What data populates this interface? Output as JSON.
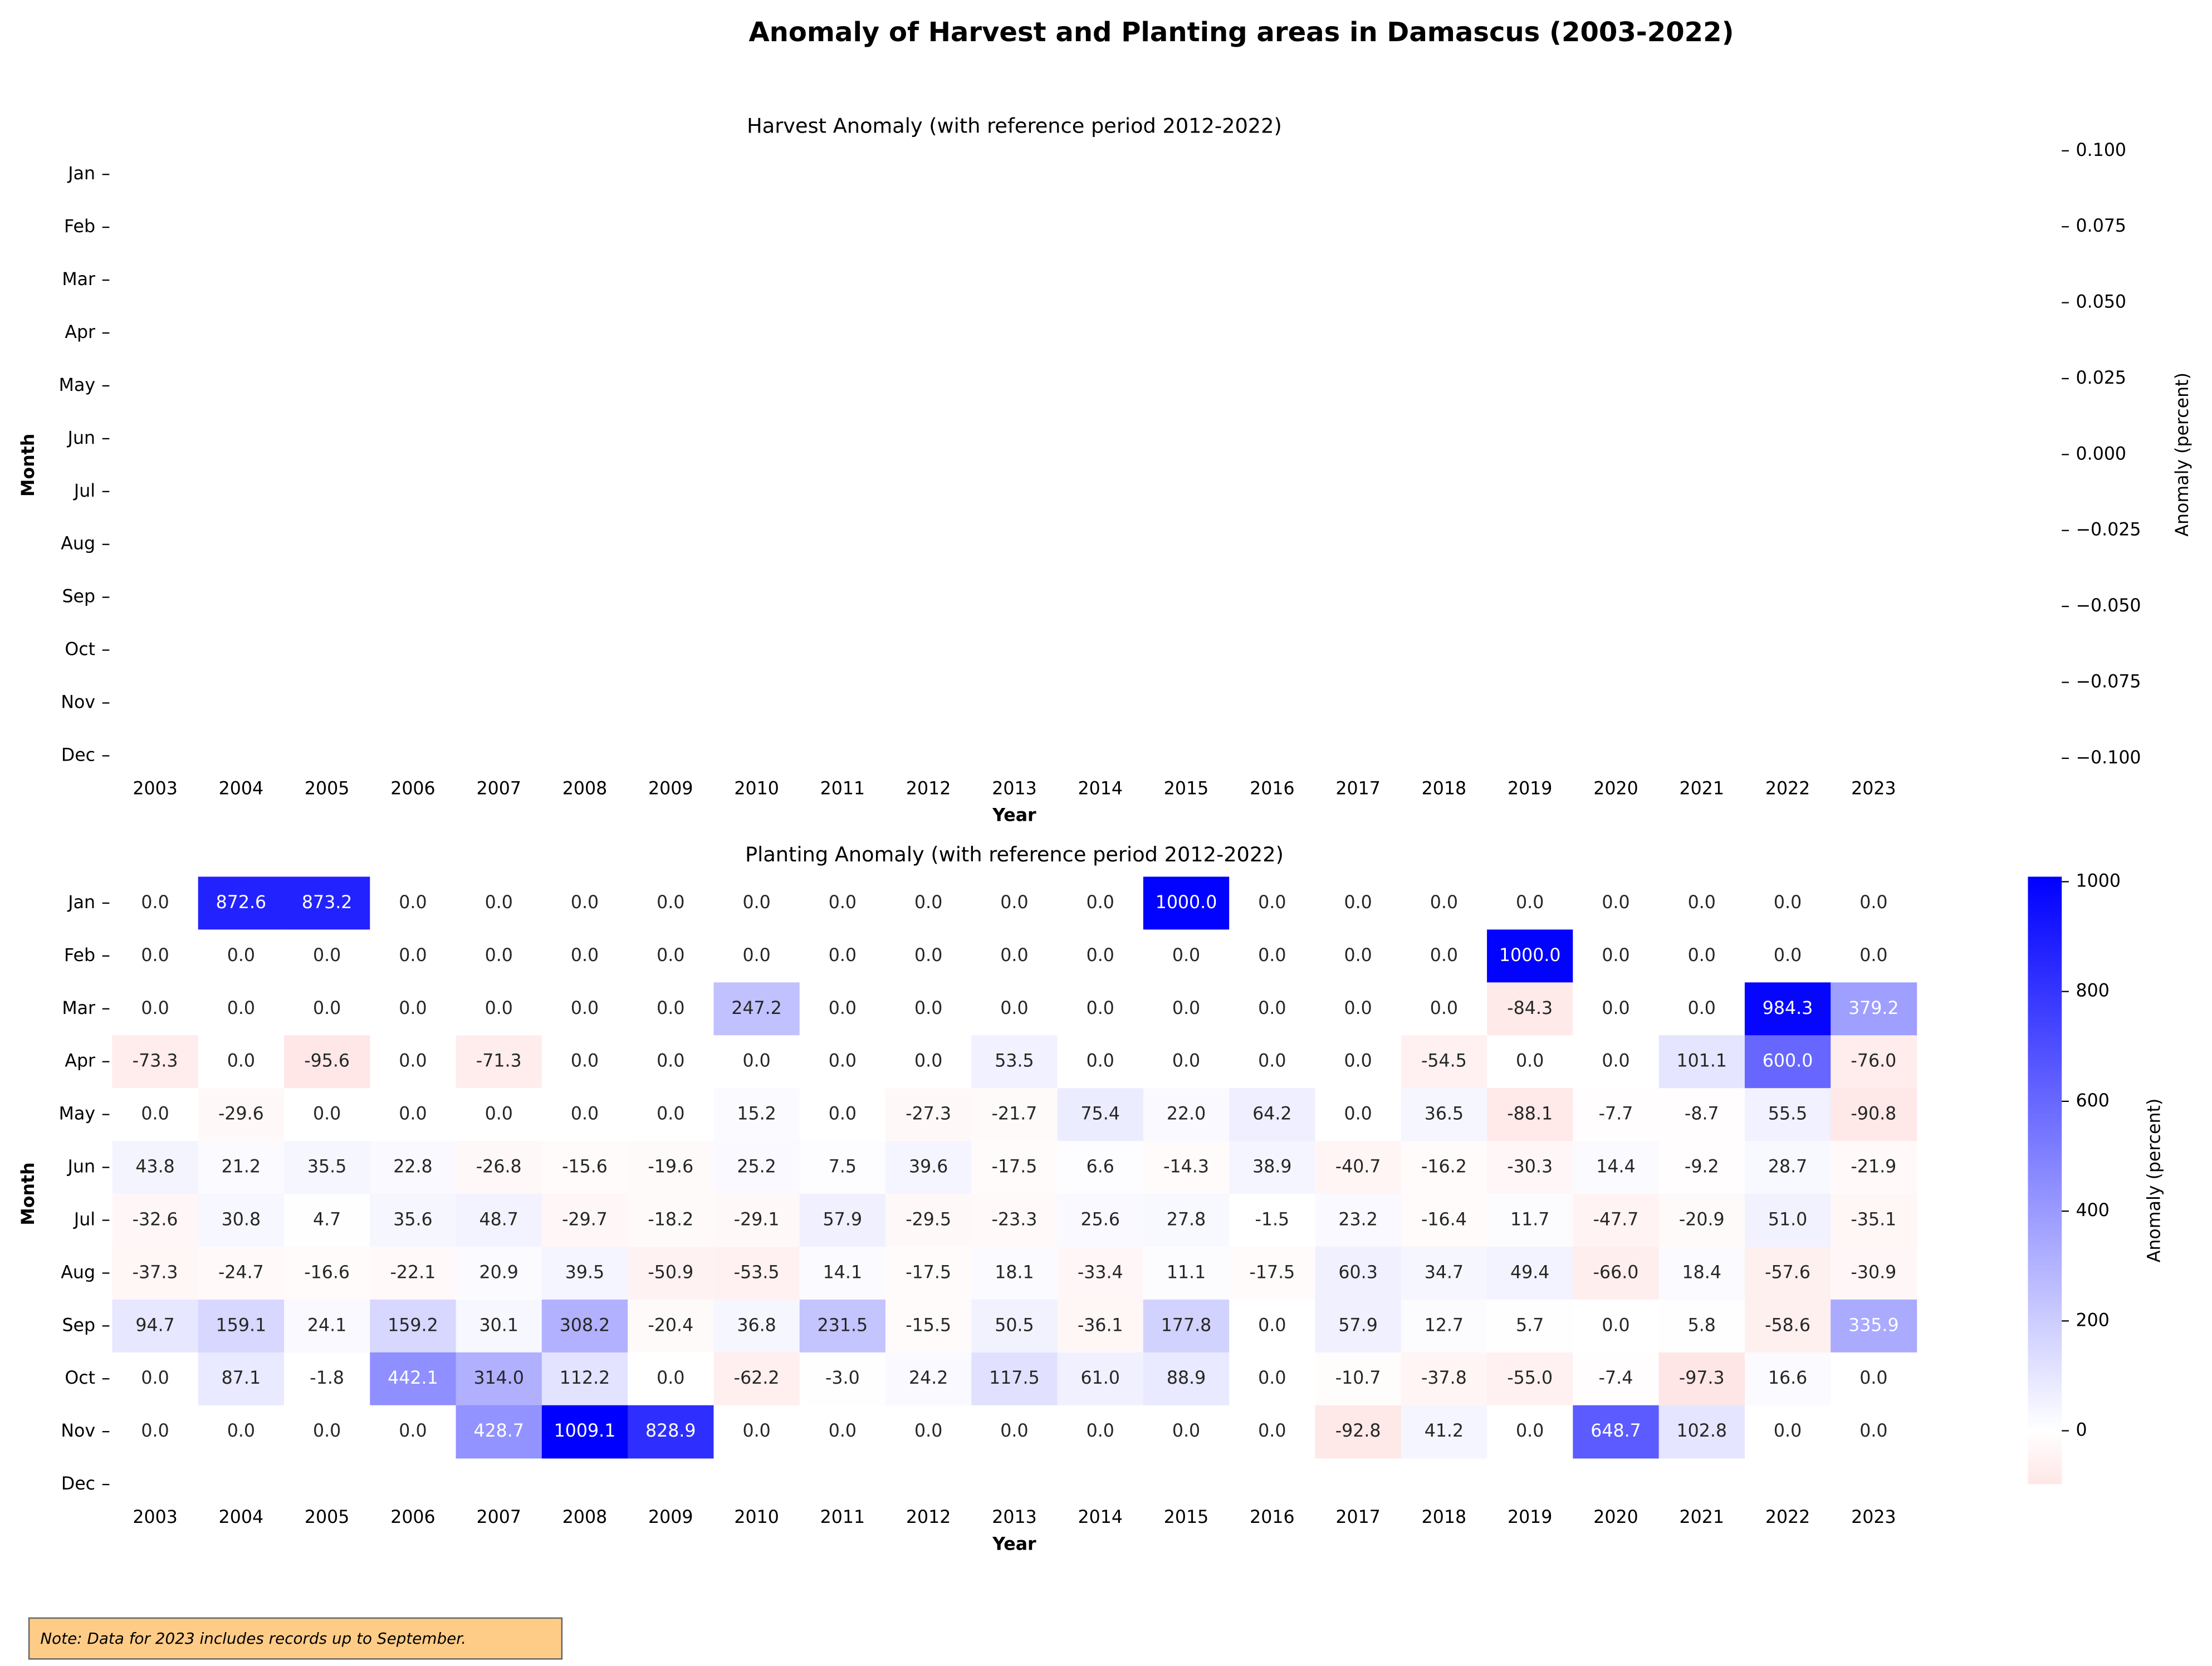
{
  "title": "Anomaly of Harvest and Planting areas in Damascus (2003-2022)",
  "note": "Note: Data for 2023 includes records up to September.",
  "chart_data": [
    {
      "type": "heatmap",
      "title": "Harvest Anomaly (with reference period 2012-2022)",
      "xlabel": "Year",
      "ylabel": "Month",
      "x": [
        "2003",
        "2004",
        "2005",
        "2006",
        "2007",
        "2008",
        "2009",
        "2010",
        "2011",
        "2012",
        "2013",
        "2014",
        "2015",
        "2016",
        "2017",
        "2018",
        "2019",
        "2020",
        "2021",
        "2022",
        "2023"
      ],
      "y": [
        "Jan",
        "Feb",
        "Mar",
        "Apr",
        "May",
        "Jun",
        "Jul",
        "Aug",
        "Sep",
        "Oct",
        "Nov",
        "Dec"
      ],
      "colorbar_label": "Anomaly (percent)",
      "clim": [
        -0.1,
        0.1
      ],
      "cmap": [
        "#ff0000",
        "#ffffff",
        "#0000ff"
      ],
      "colorbar_ticks": [
        {
          "value": 0.1,
          "label": "0.100"
        },
        {
          "value": 0.075,
          "label": "0.075"
        },
        {
          "value": 0.05,
          "label": "0.050"
        },
        {
          "value": 0.025,
          "label": "0.025"
        },
        {
          "value": 0,
          "label": "0.000"
        },
        {
          "value": -0.025,
          "label": "−0.025"
        },
        {
          "value": -0.05,
          "label": "−0.050"
        },
        {
          "value": -0.075,
          "label": "−0.075"
        },
        {
          "value": -0.1,
          "label": "−0.100"
        }
      ]
    },
    {
      "type": "heatmap",
      "title": "Planting Anomaly (with reference period 2012-2022)",
      "xlabel": "Year",
      "ylabel": "Month",
      "x": [
        "2003",
        "2004",
        "2005",
        "2006",
        "2007",
        "2008",
        "2009",
        "2010",
        "2011",
        "2012",
        "2013",
        "2014",
        "2015",
        "2016",
        "2017",
        "2018",
        "2019",
        "2020",
        "2021",
        "2022",
        "2023"
      ],
      "y": [
        "Jan",
        "Feb",
        "Mar",
        "Apr",
        "May",
        "Jun",
        "Jul",
        "Aug",
        "Sep",
        "Oct",
        "Nov",
        "Dec"
      ],
      "colorbar_label": "Anomaly (percent)",
      "clim": [
        -97.3,
        1009.1
      ],
      "cmap": [
        "#ff0000",
        "#ffffff",
        "#0000ff"
      ],
      "colorbar_ticks": [
        0,
        200,
        400,
        600,
        800,
        1000
      ],
      "values": [
        [
          0,
          872.6,
          873.2,
          0,
          0,
          0,
          0,
          0,
          0,
          0,
          0,
          0,
          1000,
          0,
          0,
          0,
          0,
          0,
          0,
          0,
          0
        ],
        [
          0,
          0,
          0,
          0,
          0,
          0,
          0,
          0,
          0,
          0,
          0,
          0,
          0,
          0,
          0,
          0,
          1000,
          0,
          0,
          0,
          0
        ],
        [
          0,
          0,
          0,
          0,
          0,
          0,
          0,
          247.2,
          0,
          0,
          0,
          0,
          0,
          0,
          0,
          0,
          -84.3,
          0,
          0,
          984.3,
          379.2
        ],
        [
          -73.3,
          0,
          -95.6,
          0,
          -71.3,
          0,
          0,
          0,
          0,
          0,
          53.5,
          0,
          0,
          0,
          0,
          -54.5,
          0,
          0,
          101.1,
          600,
          -76
        ],
        [
          0,
          -29.6,
          0,
          0,
          0,
          0,
          0,
          15.2,
          0,
          -27.3,
          -21.7,
          75.4,
          22,
          64.2,
          0,
          36.5,
          -88.1,
          -7.7,
          -8.7,
          55.5,
          -90.8
        ],
        [
          43.8,
          21.2,
          35.5,
          22.8,
          -26.8,
          -15.6,
          -19.6,
          25.2,
          7.5,
          39.6,
          -17.5,
          6.6,
          -14.3,
          38.9,
          -40.7,
          -16.2,
          -30.3,
          14.4,
          -9.2,
          28.7,
          -21.9
        ],
        [
          -32.6,
          30.8,
          4.7,
          35.6,
          48.7,
          -29.7,
          -18.2,
          -29.1,
          57.9,
          -29.5,
          -23.3,
          25.6,
          27.8,
          -1.5,
          23.2,
          -16.4,
          11.7,
          -47.7,
          -20.9,
          51,
          -35.1
        ],
        [
          -37.3,
          -24.7,
          -16.6,
          -22.1,
          20.9,
          39.5,
          -50.9,
          -53.5,
          14.1,
          -17.5,
          18.1,
          -33.4,
          11.1,
          -17.5,
          60.3,
          34.7,
          49.4,
          -66,
          18.4,
          -57.6,
          -30.9
        ],
        [
          94.7,
          159.1,
          24.1,
          159.2,
          30.1,
          308.2,
          -20.4,
          36.8,
          231.5,
          -15.5,
          50.5,
          -36.1,
          177.8,
          0,
          57.9,
          12.7,
          5.7,
          0,
          5.8,
          -58.6,
          335.9
        ],
        [
          0,
          87.1,
          -1.8,
          442.1,
          314,
          112.2,
          0,
          -62.2,
          -3,
          24.2,
          117.5,
          61,
          88.9,
          0,
          -10.7,
          -37.8,
          -55,
          -7.4,
          -97.3,
          16.6,
          0
        ],
        [
          0,
          0,
          0,
          0,
          428.7,
          1009.1,
          828.9,
          0,
          0,
          0,
          0,
          0,
          0,
          0,
          -92.8,
          41.2,
          0,
          648.7,
          102.8,
          0,
          0
        ],
        [
          null,
          null,
          null,
          null,
          null,
          null,
          null,
          null,
          null,
          null,
          null,
          null,
          null,
          null,
          null,
          null,
          null,
          null,
          null,
          null,
          null
        ]
      ],
      "value_labels": [
        [
          "0.0",
          "872.6",
          "873.2",
          "0.0",
          "0.0",
          "0.0",
          "0.0",
          "0.0",
          "0.0",
          "0.0",
          "0.0",
          "0.0",
          "1000.0",
          "0.0",
          "0.0",
          "0.0",
          "0.0",
          "0.0",
          "0.0",
          "0.0",
          "0.0"
        ],
        [
          "0.0",
          "0.0",
          "0.0",
          "0.0",
          "0.0",
          "0.0",
          "0.0",
          "0.0",
          "0.0",
          "0.0",
          "0.0",
          "0.0",
          "0.0",
          "0.0",
          "0.0",
          "0.0",
          "1000.0",
          "0.0",
          "0.0",
          "0.0",
          "0.0"
        ],
        [
          "0.0",
          "0.0",
          "0.0",
          "0.0",
          "0.0",
          "0.0",
          "0.0",
          "247.2",
          "0.0",
          "0.0",
          "0.0",
          "0.0",
          "0.0",
          "0.0",
          "0.0",
          "0.0",
          "-84.3",
          "0.0",
          "0.0",
          "984.3",
          "379.2"
        ],
        [
          "-73.3",
          "0.0",
          "-95.6",
          "0.0",
          "-71.3",
          "0.0",
          "0.0",
          "0.0",
          "0.0",
          "0.0",
          "53.5",
          "0.0",
          "0.0",
          "0.0",
          "0.0",
          "-54.5",
          "0.0",
          "0.0",
          "101.1",
          "600.0",
          "-76.0"
        ],
        [
          "0.0",
          "-29.6",
          "0.0",
          "0.0",
          "0.0",
          "0.0",
          "0.0",
          "15.2",
          "0.0",
          "-27.3",
          "-21.7",
          "75.4",
          "22.0",
          "64.2",
          "0.0",
          "36.5",
          "-88.1",
          "-7.7",
          "-8.7",
          "55.5",
          "-90.8"
        ],
        [
          "43.8",
          "21.2",
          "35.5",
          "22.8",
          "-26.8",
          "-15.6",
          "-19.6",
          "25.2",
          "7.5",
          "39.6",
          "-17.5",
          "6.6",
          "-14.3",
          "38.9",
          "-40.7",
          "-16.2",
          "-30.3",
          "14.4",
          "-9.2",
          "28.7",
          "-21.9"
        ],
        [
          "-32.6",
          "30.8",
          "4.7",
          "35.6",
          "48.7",
          "-29.7",
          "-18.2",
          "-29.1",
          "57.9",
          "-29.5",
          "-23.3",
          "25.6",
          "27.8",
          "-1.5",
          "23.2",
          "-16.4",
          "11.7",
          "-47.7",
          "-20.9",
          "51.0",
          "-35.1"
        ],
        [
          "-37.3",
          "-24.7",
          "-16.6",
          "-22.1",
          "20.9",
          "39.5",
          "-50.9",
          "-53.5",
          "14.1",
          "-17.5",
          "18.1",
          "-33.4",
          "11.1",
          "-17.5",
          "60.3",
          "34.7",
          "49.4",
          "-66.0",
          "18.4",
          "-57.6",
          "-30.9"
        ],
        [
          "94.7",
          "159.1",
          "24.1",
          "159.2",
          "30.1",
          "308.2",
          "-20.4",
          "36.8",
          "231.5",
          "-15.5",
          "50.5",
          "-36.1",
          "177.8",
          "0.0",
          "57.9",
          "12.7",
          "5.7",
          "0.0",
          "5.8",
          "-58.6",
          "335.9"
        ],
        [
          "0.0",
          "87.1",
          "-1.8",
          "442.1",
          "314.0",
          "112.2",
          "0.0",
          "-62.2",
          "-3.0",
          "24.2",
          "117.5",
          "61.0",
          "88.9",
          "0.0",
          "-10.7",
          "-37.8",
          "-55.0",
          "-7.4",
          "-97.3",
          "16.6",
          "0.0"
        ],
        [
          "0.0",
          "0.0",
          "0.0",
          "0.0",
          "428.7",
          "1009.1",
          "828.9",
          "0.0",
          "0.0",
          "0.0",
          "0.0",
          "0.0",
          "0.0",
          "0.0",
          "-92.8",
          "41.2",
          "0.0",
          "648.7",
          "102.8",
          "0.0",
          "0.0"
        ],
        [
          null,
          null,
          null,
          null,
          null,
          null,
          null,
          null,
          null,
          null,
          null,
          null,
          null,
          null,
          null,
          null,
          null,
          null,
          null,
          null,
          null
        ]
      ]
    }
  ]
}
